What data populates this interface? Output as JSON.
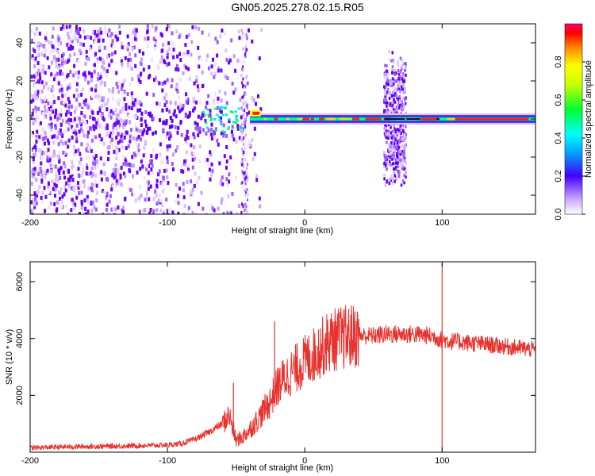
{
  "title": "GN05.2025.278.02.15.R05",
  "colors": {
    "frame": "#000000",
    "snr_line": "#e8322e",
    "spectro_low": "#e6d3ff",
    "spectro_mid": "#6a00ff",
    "spectro_hi": "#ff0000"
  },
  "chart_data": [
    {
      "type": "heatmap",
      "name": "spectrogram",
      "xlabel": "Height of straight line (km)",
      "ylabel": "Frequency (Hz)",
      "xlim": [
        -200,
        168
      ],
      "ylim": [
        -50,
        50
      ],
      "x_ticks": [
        -200,
        -100,
        0,
        100
      ],
      "x_tick_labels": [
        "-200",
        "-100",
        "0",
        "100"
      ],
      "y_ticks": [
        -40,
        -20,
        0,
        20,
        40
      ],
      "y_tick_labels": [
        "-40",
        "-20",
        "0",
        "20",
        "40"
      ],
      "colorbar": {
        "label": "Normalized spectral amplitude",
        "range": [
          0,
          1
        ],
        "ticks": [
          0.0,
          0.2,
          0.4,
          0.6,
          0.8
        ],
        "tick_labels": [
          "0.0",
          "0.2",
          "0.4",
          "0.6",
          "0.8"
        ],
        "colormap": "rainbow"
      },
      "features": {
        "broadband_noise_x": [
          -200,
          -40
        ],
        "signal_start_x": -40,
        "signal_freq_hz": 0,
        "burst_x": [
          57,
          73
        ],
        "burst_freq_range": [
          -38,
          38
        ]
      }
    },
    {
      "type": "line",
      "name": "snr",
      "xlabel": "Height of straight line (km)",
      "ylabel": "SNR (10 * v/v)",
      "xlim": [
        -200,
        168
      ],
      "ylim": [
        0,
        6700
      ],
      "x_ticks": [
        -200,
        -100,
        0,
        100
      ],
      "x_tick_labels": [
        "-200",
        "-100",
        "0",
        "100"
      ],
      "y_ticks": [
        2000,
        4000,
        6000
      ],
      "y_tick_labels": [
        "2000",
        "4000",
        "6000"
      ],
      "series": [
        {
          "name": "SNR",
          "x": [
            -200,
            -180,
            -160,
            -140,
            -120,
            -100,
            -90,
            -80,
            -70,
            -60,
            -55,
            -50,
            -45,
            -40,
            -35,
            -30,
            -25,
            -22,
            -20,
            -15,
            -10,
            -5,
            0,
            5,
            10,
            15,
            20,
            30,
            40,
            50,
            60,
            70,
            80,
            90,
            95,
            98,
            100,
            102,
            105,
            110,
            120,
            130,
            140,
            150,
            160,
            168
          ],
          "values": [
            150,
            180,
            200,
            210,
            230,
            250,
            300,
            450,
            700,
            1000,
            1300,
            400,
            550,
            800,
            1100,
            1450,
            1800,
            2100,
            2300,
            2600,
            2800,
            3000,
            3200,
            3350,
            3600,
            3800,
            3950,
            4050,
            4100,
            4100,
            4150,
            4150,
            4150,
            4100,
            4050,
            4000,
            3950,
            3950,
            3900,
            3900,
            3850,
            3800,
            3750,
            3700,
            3650,
            3600
          ]
        }
      ],
      "spikes": [
        {
          "x": -22,
          "value": 4600
        },
        {
          "x": -52,
          "value": 2450
        },
        {
          "x": 100,
          "value": 6650
        },
        {
          "x": 100,
          "value": 50
        }
      ]
    }
  ]
}
